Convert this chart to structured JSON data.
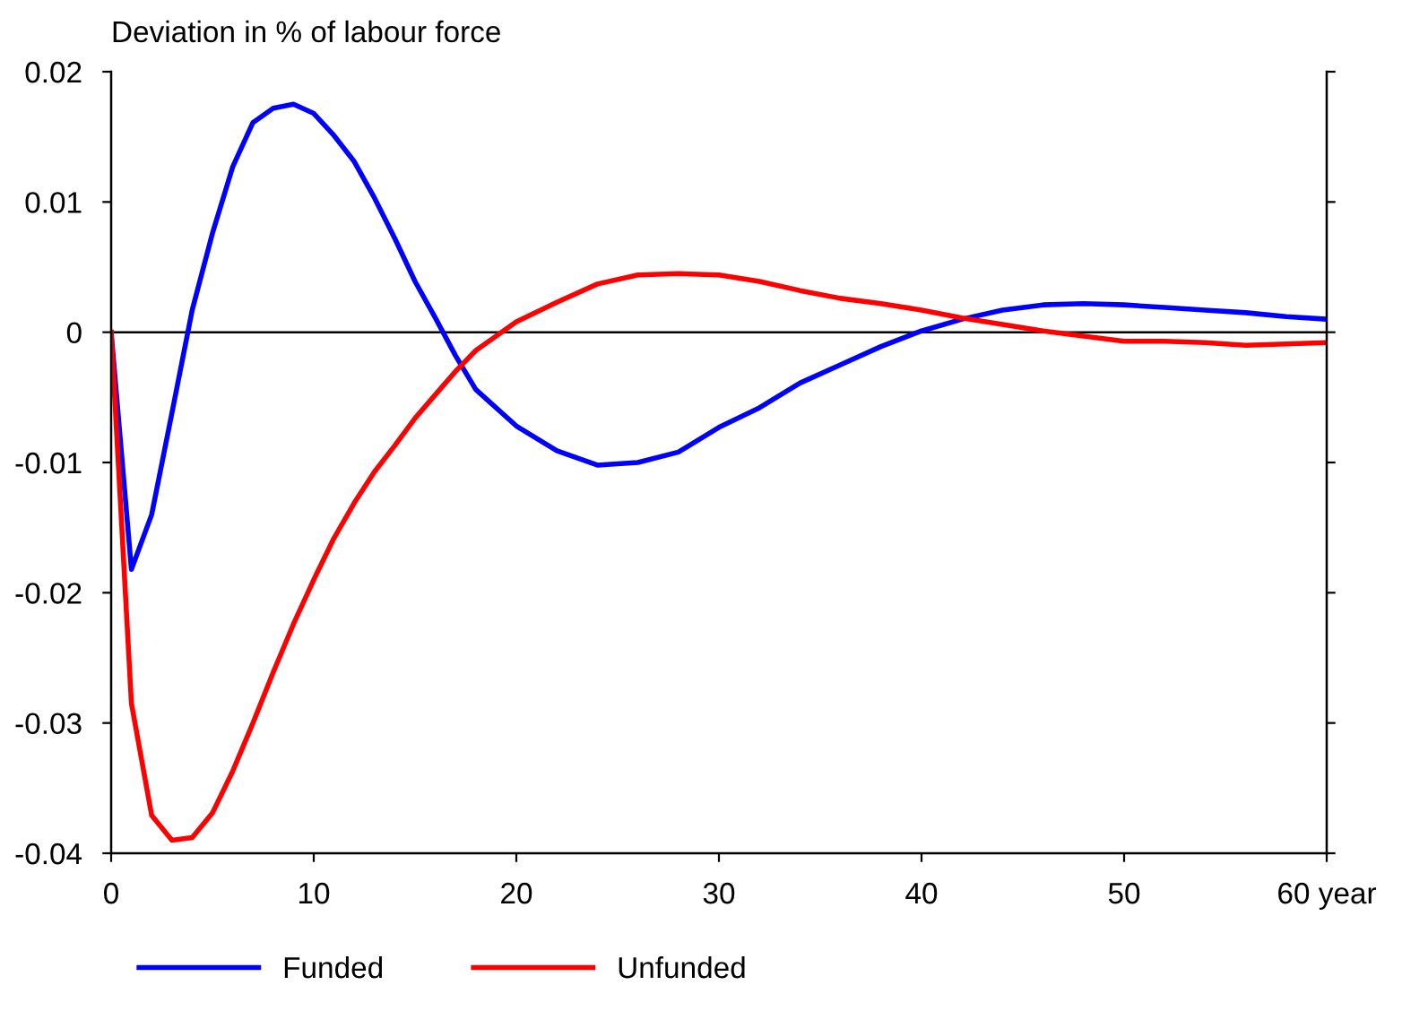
{
  "chart_data": {
    "type": "line",
    "ylabel": "Deviation in % of labour force",
    "series": [
      {
        "name": "Funded",
        "color": "#0000ff",
        "x": [
          0,
          1,
          2,
          3,
          4,
          5,
          6,
          7,
          8,
          9,
          10,
          11,
          12,
          13,
          14,
          15,
          16,
          17,
          18,
          20,
          22,
          24,
          26,
          28,
          30,
          32,
          34,
          36,
          38,
          40,
          42,
          44,
          46,
          48,
          50,
          52,
          54,
          56,
          58,
          60
        ],
        "values": [
          0,
          -0.0182,
          -0.014,
          -0.0062,
          0.0017,
          0.0076,
          0.0127,
          0.0161,
          0.0172,
          0.0175,
          0.0168,
          0.0151,
          0.0131,
          0.0103,
          0.0072,
          0.0039,
          0.0011,
          -0.0018,
          -0.0044,
          -0.0072,
          -0.0091,
          -0.0102,
          -0.01,
          -0.0092,
          -0.0073,
          -0.0058,
          -0.0039,
          -0.0025,
          -0.0011,
          0.0001,
          0.001,
          0.0017,
          0.0021,
          0.0022,
          0.0021,
          0.0019,
          0.0017,
          0.0015,
          0.0012,
          0.001
        ]
      },
      {
        "name": "Unfunded",
        "color": "#ff0000",
        "x": [
          0,
          1,
          2,
          3,
          4,
          5,
          6,
          7,
          8,
          9,
          10,
          11,
          12,
          13,
          14,
          15,
          16,
          17,
          18,
          19,
          20,
          22,
          24,
          26,
          28,
          30,
          32,
          34,
          36,
          38,
          40,
          42,
          44,
          46,
          48,
          50,
          52,
          54,
          56,
          58,
          60
        ],
        "values": [
          0,
          -0.0285,
          -0.0371,
          -0.039,
          -0.0388,
          -0.0369,
          -0.0337,
          -0.03,
          -0.0261,
          -0.0224,
          -0.019,
          -0.0158,
          -0.0131,
          -0.0107,
          -0.0087,
          -0.0066,
          -0.0048,
          -0.003,
          -0.0014,
          -0.0003,
          0.0008,
          0.0023,
          0.0037,
          0.0044,
          0.0045,
          0.0044,
          0.0039,
          0.0032,
          0.0026,
          0.0022,
          0.0017,
          0.0011,
          0.0006,
          0.0001,
          -0.0003,
          -0.0007,
          -0.0007,
          -0.0008,
          -0.001,
          -0.0009,
          -0.0008
        ]
      }
    ],
    "xlim": [
      0,
      60
    ],
    "xticks": [
      0,
      10,
      20,
      30,
      40,
      50,
      {
        "value": 60,
        "label": "60 year"
      }
    ],
    "ylim": [
      -0.04,
      0.02
    ],
    "yticks": [
      -0.04,
      -0.03,
      -0.02,
      -0.01,
      0,
      0.01,
      0.02
    ],
    "ref_lines": [
      {
        "axis": "y",
        "value": 0,
        "color": "#000000"
      }
    ],
    "grid": false,
    "legend": "bottom",
    "line_style": "solid",
    "marker": "none"
  }
}
